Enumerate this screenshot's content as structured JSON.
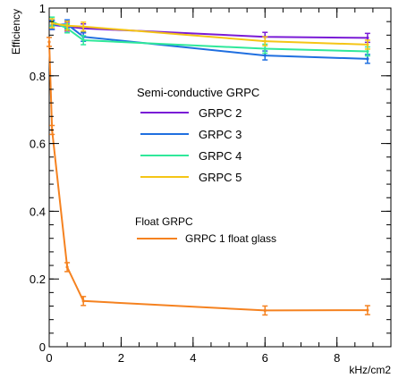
{
  "chart_data": {
    "type": "line",
    "title": "",
    "xlabel": "kHz/cm2",
    "ylabel": "Efficiency",
    "xlim": [
      0,
      9.5
    ],
    "ylim": [
      0,
      1
    ],
    "grid": false,
    "x_ticks": [
      {
        "value": 0,
        "label": "0"
      },
      {
        "value": 2,
        "label": "2"
      },
      {
        "value": 4,
        "label": "4"
      },
      {
        "value": 6,
        "label": "6"
      },
      {
        "value": 8,
        "label": "8"
      }
    ],
    "y_ticks": [
      {
        "value": 0,
        "label": "0"
      },
      {
        "value": 0.2,
        "label": "0.2"
      },
      {
        "value": 0.4,
        "label": "0.4"
      },
      {
        "value": 0.6,
        "label": "0.6"
      },
      {
        "value": 0.8,
        "label": "0.8"
      },
      {
        "value": 1,
        "label": "1"
      }
    ],
    "legend_groups": [
      {
        "title": "Semi-conductive GRPC",
        "entries": [
          "GRPC 2",
          "GRPC 3",
          "GRPC 4",
          "GRPC 5"
        ]
      },
      {
        "title": "Float GRPC",
        "entries": [
          "GRPC 1 float glass"
        ]
      }
    ],
    "series": [
      {
        "name": "GRPC 2",
        "color": "#7a1bd6",
        "points": [
          {
            "x": 0.08,
            "y": 0.95
          },
          {
            "x": 0.5,
            "y": 0.945
          },
          {
            "x": 0.95,
            "y": 0.94
          },
          {
            "x": 6.0,
            "y": 0.915
          },
          {
            "x": 8.85,
            "y": 0.912
          }
        ]
      },
      {
        "name": "GRPC 3",
        "color": "#1f6fe0",
        "points": [
          {
            "x": 0.08,
            "y": 0.95
          },
          {
            "x": 0.5,
            "y": 0.952
          },
          {
            "x": 0.95,
            "y": 0.915
          },
          {
            "x": 6.0,
            "y": 0.86
          },
          {
            "x": 8.85,
            "y": 0.85
          }
        ]
      },
      {
        "name": "GRPC 4",
        "color": "#2fe89a",
        "points": [
          {
            "x": 0.08,
            "y": 0.96
          },
          {
            "x": 0.5,
            "y": 0.94
          },
          {
            "x": 0.95,
            "y": 0.905
          },
          {
            "x": 6.0,
            "y": 0.88
          },
          {
            "x": 8.85,
            "y": 0.872
          }
        ]
      },
      {
        "name": "GRPC 5",
        "color": "#f5c516",
        "points": [
          {
            "x": 0.08,
            "y": 0.955
          },
          {
            "x": 0.5,
            "y": 0.948
          },
          {
            "x": 0.95,
            "y": 0.945
          },
          {
            "x": 6.0,
            "y": 0.902
          },
          {
            "x": 8.85,
            "y": 0.892
          }
        ]
      },
      {
        "name": "GRPC 1 float glass",
        "color": "#f58220",
        "points": [
          {
            "x": 0.0,
            "y": 0.9
          },
          {
            "x": 0.08,
            "y": 0.64
          },
          {
            "x": 0.5,
            "y": 0.235
          },
          {
            "x": 0.95,
            "y": 0.135
          },
          {
            "x": 6.0,
            "y": 0.107
          },
          {
            "x": 8.85,
            "y": 0.108
          }
        ]
      }
    ]
  }
}
